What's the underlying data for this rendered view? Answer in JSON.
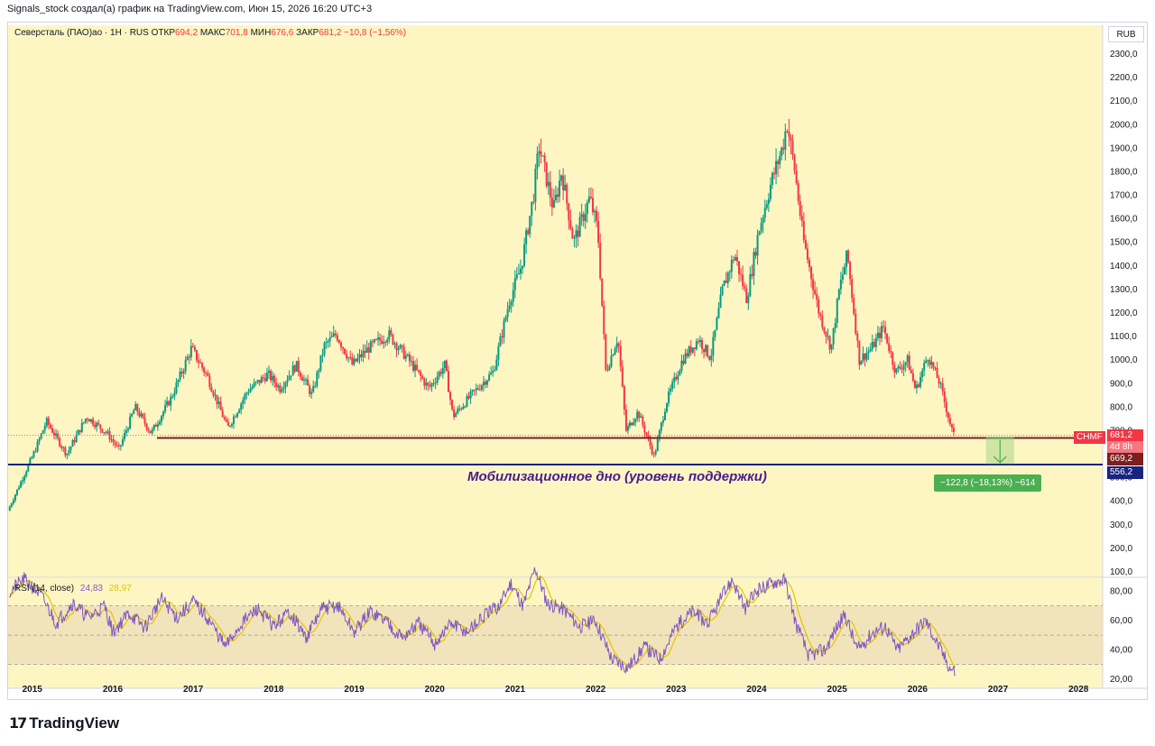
{
  "header": {
    "attribution": "Signals_stock создал(а) график на TradingView.com, Июн 15, 2026 16:20 UTC+3"
  },
  "legend": {
    "symbol": "Северсталь (ПАО)ао · 1Н · RUS",
    "open_label": "ОТКР",
    "open_value": "694,2",
    "high_label": "МАКС",
    "high_value": "701,8",
    "low_label": "МИН",
    "low_value": "676,6",
    "close_label": "ЗАКР",
    "close_value": "681,2",
    "change": "−10,8 (−1,56%)"
  },
  "currency_button": "RUB",
  "price_tags": {
    "ticker": "CHMF",
    "last_price": "681,2",
    "countdown": "4d 8h",
    "resistance": "669,2",
    "support": "556,2"
  },
  "support_label": "Мобилизационное дно (уровень поддержки)",
  "measure_label": "−122,8 (−18,13%) −614",
  "rsi_legend": {
    "name": "RSI (14, close)",
    "value": "24,83",
    "ma_value": "28,97"
  },
  "logo_text": "TradingView",
  "colors": {
    "background": "#fdf6c3",
    "up": "#089981",
    "down": "#f23645",
    "resistance_line": "#7b1f1f",
    "support_line": "#1a237e",
    "rsi": "#7e57c2",
    "rsi_ma": "#e6c200",
    "measure": "#4caf50"
  },
  "chart_data": [
    {
      "type": "candlestick",
      "y_axis": {
        "min": 100,
        "max": 2300,
        "ticks": [
          "100,0",
          "200,0",
          "300,0",
          "400,0",
          "500,0",
          "600,0",
          "700,0",
          "800,0",
          "900,0",
          "1000,0",
          "1100,0",
          "1200,0",
          "1300,0",
          "1400,0",
          "1500,0",
          "1600,0",
          "1700,0",
          "1800,0",
          "1900,0",
          "2000,0",
          "2100,0",
          "2200,0",
          "2300,0"
        ]
      },
      "x_axis": {
        "range": [
          2014.7,
          2028.3
        ],
        "ticks": [
          "2015",
          "2016",
          "2017",
          "2018",
          "2019",
          "2020",
          "2021",
          "2022",
          "2023",
          "2024",
          "2025",
          "2026",
          "2027",
          "2028"
        ]
      },
      "price_path": [
        [
          2014.72,
          360
        ],
        [
          2015.05,
          610
        ],
        [
          2015.2,
          740
        ],
        [
          2015.45,
          600
        ],
        [
          2015.7,
          760
        ],
        [
          2015.95,
          690
        ],
        [
          2016.1,
          620
        ],
        [
          2016.3,
          800
        ],
        [
          2016.5,
          690
        ],
        [
          2016.75,
          840
        ],
        [
          2017.0,
          1050
        ],
        [
          2017.2,
          930
        ],
        [
          2017.45,
          710
        ],
        [
          2017.7,
          870
        ],
        [
          2017.95,
          940
        ],
        [
          2018.1,
          880
        ],
        [
          2018.3,
          980
        ],
        [
          2018.5,
          850
        ],
        [
          2018.65,
          1060
        ],
        [
          2018.8,
          1110
        ],
        [
          2019.0,
          980
        ],
        [
          2019.2,
          1050
        ],
        [
          2019.45,
          1110
        ],
        [
          2019.7,
          1000
        ],
        [
          2019.95,
          880
        ],
        [
          2020.15,
          980
        ],
        [
          2020.25,
          760
        ],
        [
          2020.5,
          860
        ],
        [
          2020.75,
          950
        ],
        [
          2020.95,
          1250
        ],
        [
          2021.1,
          1400
        ],
        [
          2021.25,
          1700
        ],
        [
          2021.32,
          1910
        ],
        [
          2021.5,
          1640
        ],
        [
          2021.6,
          1800
        ],
        [
          2021.75,
          1500
        ],
        [
          2021.95,
          1690
        ],
        [
          2022.05,
          1550
        ],
        [
          2022.15,
          950
        ],
        [
          2022.3,
          1100
        ],
        [
          2022.4,
          700
        ],
        [
          2022.55,
          780
        ],
        [
          2022.75,
          590
        ],
        [
          2022.9,
          820
        ],
        [
          2023.1,
          1000
        ],
        [
          2023.3,
          1090
        ],
        [
          2023.45,
          1010
        ],
        [
          2023.6,
          1300
        ],
        [
          2023.75,
          1450
        ],
        [
          2023.9,
          1260
        ],
        [
          2024.05,
          1550
        ],
        [
          2024.2,
          1750
        ],
        [
          2024.35,
          1910
        ],
        [
          2024.4,
          2010
        ],
        [
          2024.5,
          1800
        ],
        [
          2024.6,
          1520
        ],
        [
          2024.8,
          1200
        ],
        [
          2024.95,
          1050
        ],
        [
          2025.05,
          1300
        ],
        [
          2025.15,
          1450
        ],
        [
          2025.3,
          1000
        ],
        [
          2025.45,
          1050
        ],
        [
          2025.6,
          1140
        ],
        [
          2025.75,
          950
        ],
        [
          2025.9,
          1000
        ],
        [
          2026.0,
          870
        ],
        [
          2026.15,
          1020
        ],
        [
          2026.3,
          900
        ],
        [
          2026.42,
          740
        ],
        [
          2026.47,
          681
        ]
      ],
      "resistance_level": 669.2,
      "support_level": 556.2,
      "last_price": 681.2
    },
    {
      "type": "line",
      "title": "RSI (14, close)",
      "y_axis": {
        "min": 15,
        "max": 95,
        "ticks": [
          "20,00",
          "40,00",
          "60,00",
          "80,00"
        ]
      },
      "bands": {
        "upper": 70,
        "middle": 50,
        "lower": 30
      },
      "rsi_path": [
        [
          2014.72,
          80
        ],
        [
          2014.9,
          88
        ],
        [
          2015.1,
          78
        ],
        [
          2015.3,
          58
        ],
        [
          2015.5,
          72
        ],
        [
          2015.7,
          62
        ],
        [
          2015.9,
          70
        ],
        [
          2016.0,
          52
        ],
        [
          2016.2,
          65
        ],
        [
          2016.4,
          55
        ],
        [
          2016.6,
          75
        ],
        [
          2016.8,
          62
        ],
        [
          2017.0,
          73
        ],
        [
          2017.2,
          60
        ],
        [
          2017.4,
          42
        ],
        [
          2017.6,
          58
        ],
        [
          2017.8,
          68
        ],
        [
          2018.0,
          56
        ],
        [
          2018.2,
          66
        ],
        [
          2018.4,
          48
        ],
        [
          2018.6,
          68
        ],
        [
          2018.8,
          70
        ],
        [
          2019.0,
          52
        ],
        [
          2019.2,
          66
        ],
        [
          2019.4,
          60
        ],
        [
          2019.6,
          48
        ],
        [
          2019.8,
          58
        ],
        [
          2020.0,
          44
        ],
        [
          2020.2,
          58
        ],
        [
          2020.4,
          52
        ],
        [
          2020.6,
          62
        ],
        [
          2020.8,
          70
        ],
        [
          2020.95,
          86
        ],
        [
          2021.1,
          70
        ],
        [
          2021.25,
          96
        ],
        [
          2021.4,
          72
        ],
        [
          2021.6,
          68
        ],
        [
          2021.8,
          56
        ],
        [
          2022.0,
          60
        ],
        [
          2022.2,
          34
        ],
        [
          2022.4,
          28
        ],
        [
          2022.6,
          42
        ],
        [
          2022.8,
          34
        ],
        [
          2023.0,
          56
        ],
        [
          2023.2,
          66
        ],
        [
          2023.4,
          58
        ],
        [
          2023.55,
          74
        ],
        [
          2023.7,
          88
        ],
        [
          2023.85,
          68
        ],
        [
          2024.0,
          80
        ],
        [
          2024.2,
          86
        ],
        [
          2024.35,
          88
        ],
        [
          2024.5,
          56
        ],
        [
          2024.65,
          36
        ],
        [
          2024.85,
          40
        ],
        [
          2025.0,
          56
        ],
        [
          2025.1,
          64
        ],
        [
          2025.25,
          40
        ],
        [
          2025.45,
          52
        ],
        [
          2025.6,
          56
        ],
        [
          2025.75,
          40
        ],
        [
          2025.95,
          52
        ],
        [
          2026.1,
          60
        ],
        [
          2026.25,
          44
        ],
        [
          2026.4,
          28
        ],
        [
          2026.47,
          25
        ]
      ],
      "last_value": 24.83,
      "ma_value": 28.97
    }
  ]
}
